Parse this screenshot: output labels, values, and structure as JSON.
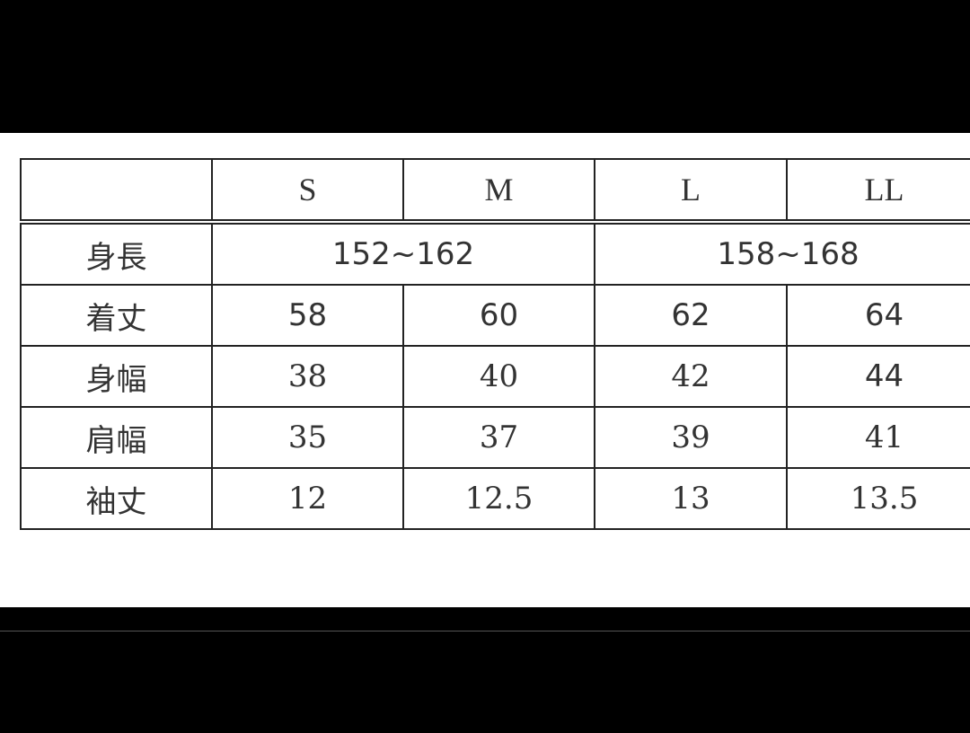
{
  "table": {
    "header": [
      "",
      "S",
      "M",
      "L",
      "LL"
    ],
    "height_row": {
      "label": "身長",
      "ranges": [
        "152~162",
        "158~168"
      ]
    },
    "rows": [
      {
        "label": "着丈",
        "values": [
          "58",
          "60",
          "62",
          "64"
        ]
      },
      {
        "label": "身幅",
        "values": [
          "38",
          "40",
          "42",
          "44"
        ]
      },
      {
        "label": "肩幅",
        "values": [
          "35",
          "37",
          "39",
          "41"
        ]
      },
      {
        "label": "袖丈",
        "values": [
          "12",
          "12.5",
          "13",
          "13.5"
        ]
      }
    ]
  }
}
